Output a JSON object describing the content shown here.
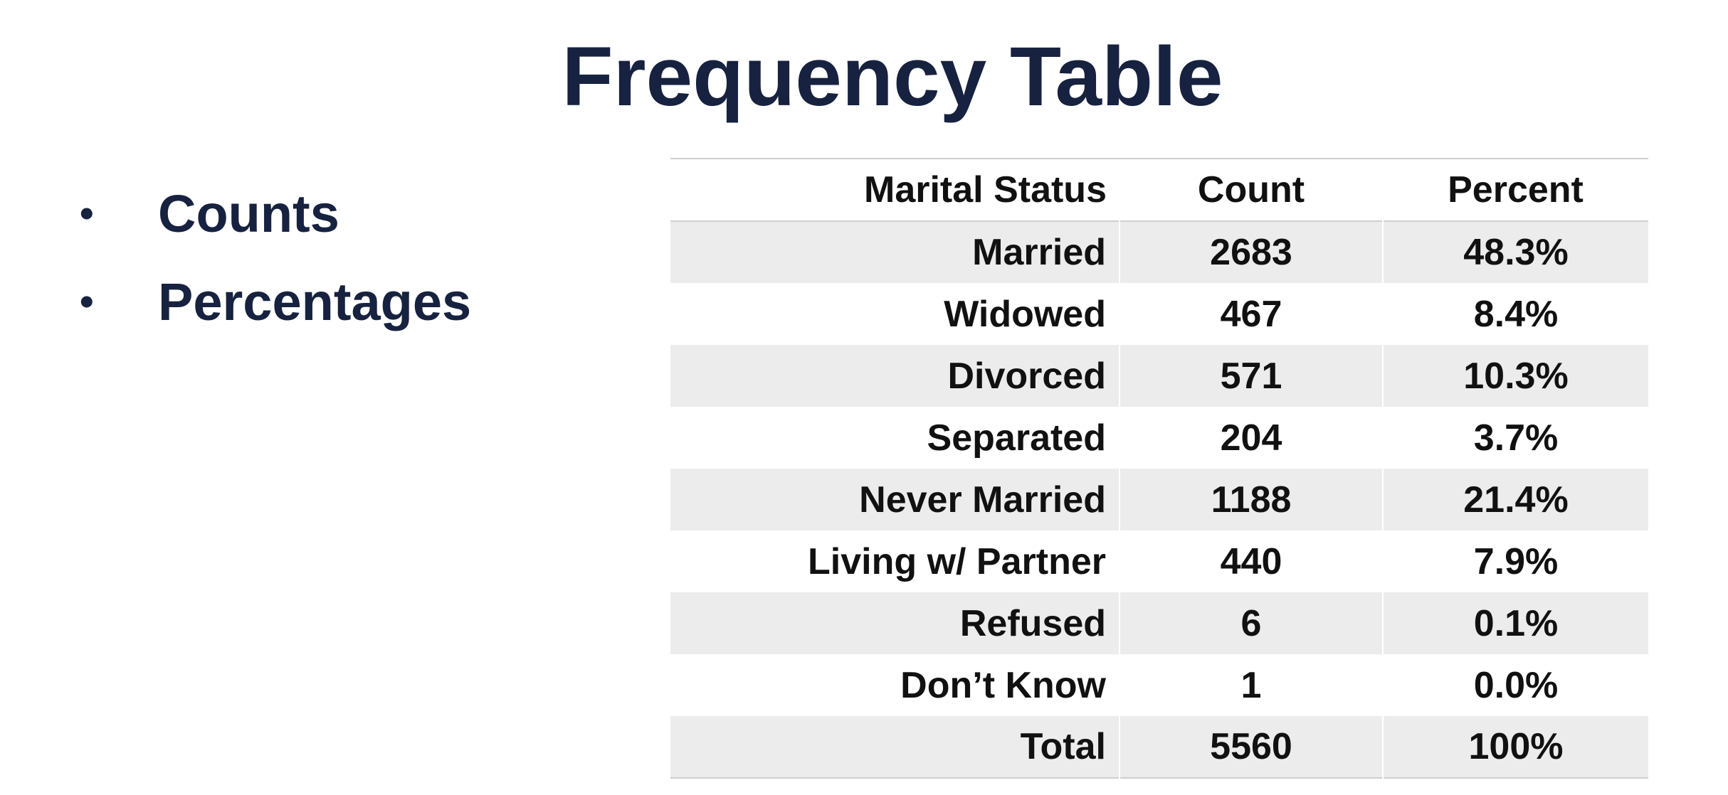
{
  "title": "Frequency Table",
  "bullets": [
    {
      "label": "Counts"
    },
    {
      "label": "Percentages"
    }
  ],
  "table": {
    "headers": [
      "Marital Status",
      "Count",
      "Percent"
    ],
    "rows": [
      {
        "status": "Married",
        "count": "2683",
        "percent": "48.3%"
      },
      {
        "status": "Widowed",
        "count": "467",
        "percent": "8.4%"
      },
      {
        "status": "Divorced",
        "count": "571",
        "percent": "10.3%"
      },
      {
        "status": "Separated",
        "count": "204",
        "percent": "3.7%"
      },
      {
        "status": "Never Married",
        "count": "1188",
        "percent": "21.4%"
      },
      {
        "status": "Living w/ Partner",
        "count": "440",
        "percent": "7.9%"
      },
      {
        "status": "Refused",
        "count": "6",
        "percent": "0.1%"
      },
      {
        "status": "Don’t Know",
        "count": "1",
        "percent": "0.0%"
      },
      {
        "status": "Total",
        "count": "5560",
        "percent": "100%"
      }
    ]
  },
  "colors": {
    "title": "#16223f",
    "text": "#111111",
    "band": "#ececec",
    "rule": "#cfcfcf"
  }
}
